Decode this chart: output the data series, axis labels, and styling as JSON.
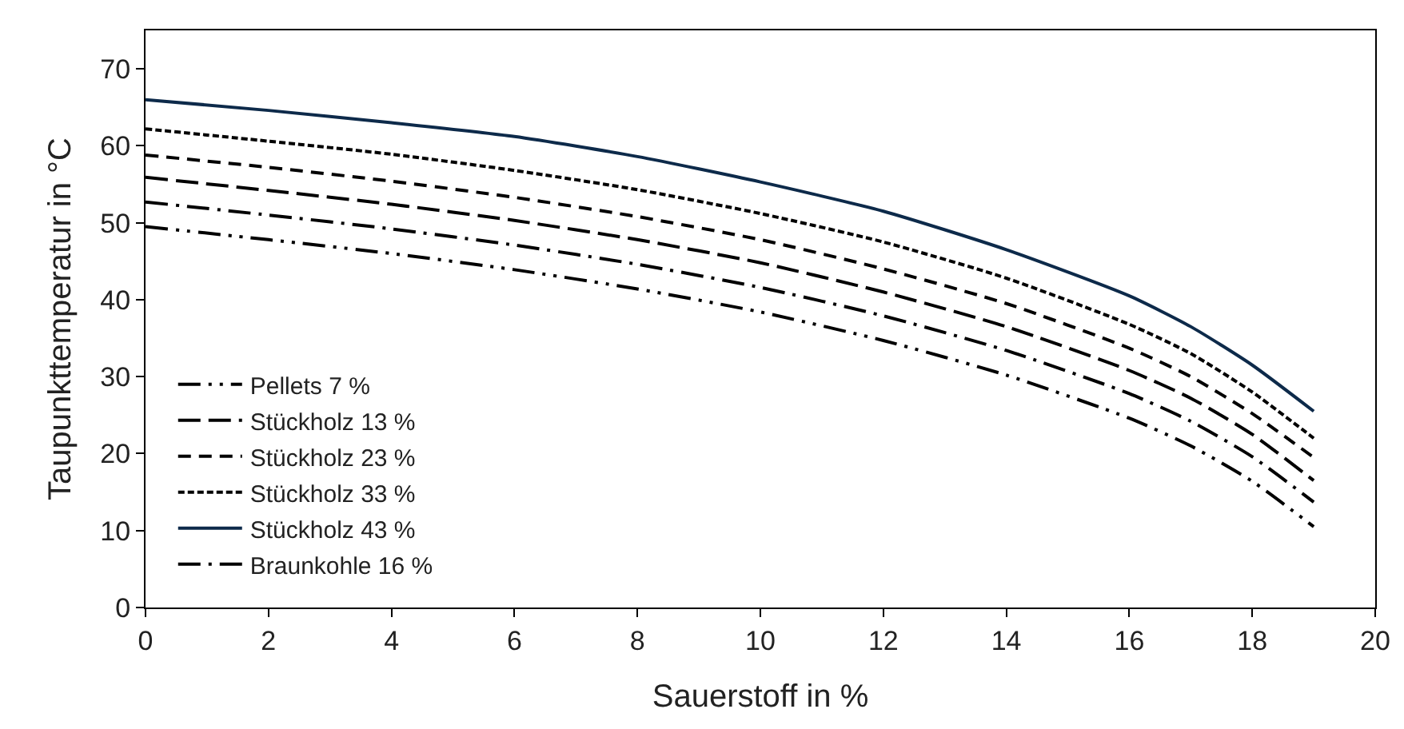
{
  "chart_data": {
    "type": "line",
    "xlabel": "Sauerstoff in %",
    "ylabel": "Taupunkttemperatur in °C",
    "x": [
      0,
      2,
      4,
      6,
      8,
      10,
      12,
      14,
      16,
      17,
      18,
      19
    ],
    "xlim": [
      0,
      20
    ],
    "xticks": [
      0,
      2,
      4,
      6,
      8,
      10,
      12,
      14,
      16,
      18,
      20
    ],
    "ylim": [
      0,
      75
    ],
    "yticks": [
      0,
      10,
      20,
      30,
      40,
      50,
      60,
      70
    ],
    "grid": false,
    "legend": "bottom left",
    "marker": "none",
    "series": [
      {
        "name": "Pellets 7 %",
        "color": "#000000",
        "line_style": "dashdotdot",
        "values": [
          49.5,
          47.8,
          46,
          43.9,
          41.4,
          38.4,
          34.7,
          30.2,
          24.6,
          21,
          16.4,
          10.5
        ]
      },
      {
        "name": "Stückholz 13 %",
        "color": "#000000",
        "line_style": "longdash",
        "values": [
          55.9,
          54.2,
          52.4,
          50.3,
          47.8,
          44.8,
          41,
          36.5,
          30.8,
          27.2,
          22.5,
          16.5
        ]
      },
      {
        "name": "Stückholz 23 %",
        "color": "#000000",
        "line_style": "dashed",
        "values": [
          58.8,
          57.2,
          55.4,
          53.3,
          50.8,
          47.8,
          44,
          39.5,
          33.7,
          30,
          25.2,
          19.5
        ]
      },
      {
        "name": "Stückholz 33 %",
        "color": "#000000",
        "line_style": "dotted",
        "values": [
          62.2,
          60.6,
          58.9,
          56.8,
          54.3,
          51.2,
          47.5,
          42.8,
          36.8,
          33,
          28,
          22
        ]
      },
      {
        "name": "Stückholz 43 %",
        "color": "#0d2a4a",
        "line_style": "solid",
        "values": [
          66,
          64.6,
          63,
          61.2,
          58.6,
          55.3,
          51.5,
          46.5,
          40.5,
          36.5,
          31.5,
          25.5
        ]
      },
      {
        "name": "Braunkohle 16 %",
        "color": "#000000",
        "line_style": "dashdot",
        "values": [
          52.7,
          51,
          49.2,
          47.1,
          44.6,
          41.6,
          37.9,
          33.4,
          27.8,
          24.2,
          19.6,
          13.7
        ]
      }
    ]
  }
}
